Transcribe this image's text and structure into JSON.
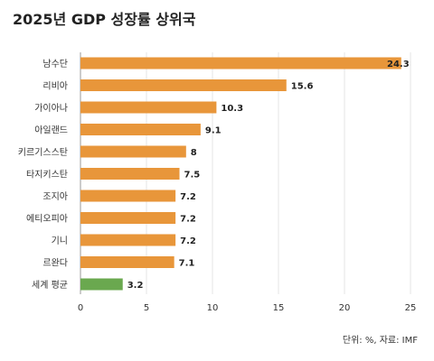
{
  "title": "2025년 GDP 성장률 상위국",
  "source": "단위: %, 자료: IMF",
  "colors": {
    "bar": "#E8963A",
    "highlight": "#6AA84F",
    "grid": "#E6E6E6",
    "axis": "#999999"
  },
  "chart_data": {
    "type": "bar",
    "orientation": "horizontal",
    "categories": [
      "남수단",
      "리비아",
      "가이아나",
      "아일랜드",
      "키르기스스탄",
      "타지키스탄",
      "조지아",
      "에티오피아",
      "기니",
      "르완다",
      "세계 평균"
    ],
    "values": [
      24.3,
      15.6,
      10.3,
      9.1,
      8,
      7.5,
      7.2,
      7.2,
      7.2,
      7.1,
      3.2
    ],
    "value_labels": [
      "24.3",
      "15.6",
      "10.3",
      "9.1",
      "8",
      "7.5",
      "7.2",
      "7.2",
      "7.2",
      "7.1",
      "3.2"
    ],
    "xlim": [
      0,
      25
    ],
    "xticks": [
      0,
      5,
      10,
      15,
      20,
      25
    ],
    "highlight_category": "세계 평균",
    "grid": true,
    "legend": "none"
  }
}
